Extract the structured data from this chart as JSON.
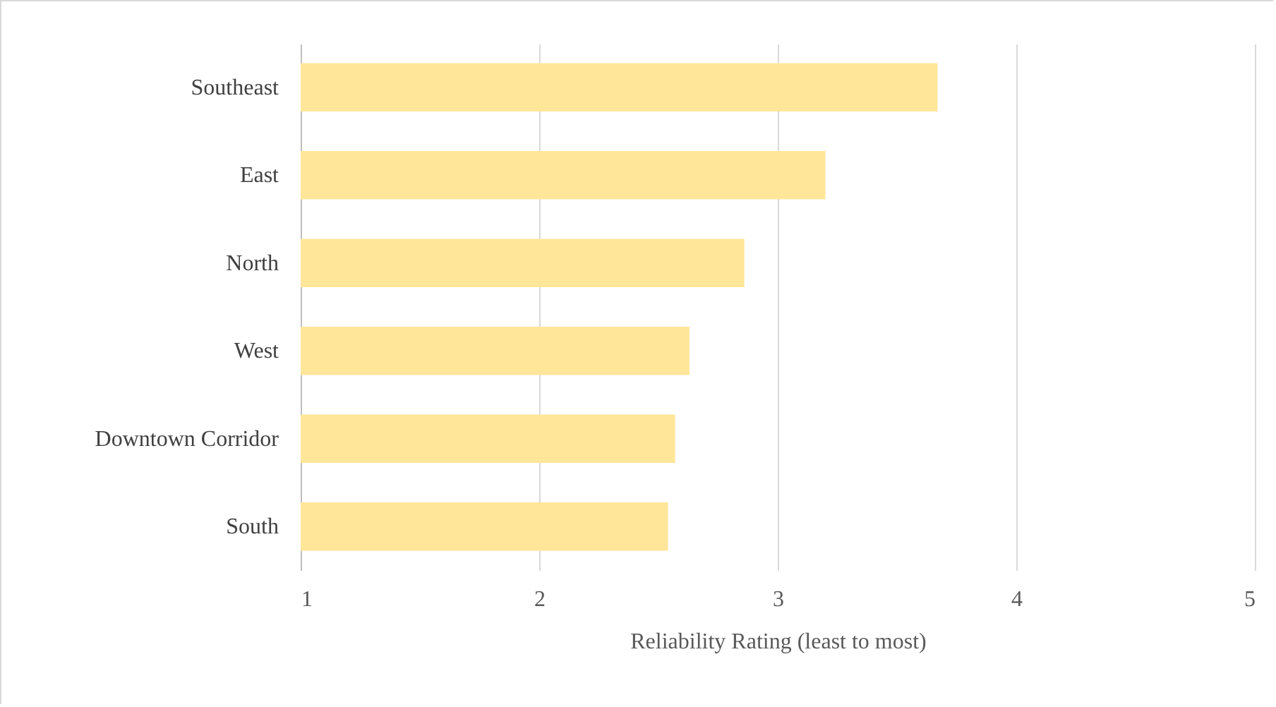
{
  "chart_data": {
    "type": "bar",
    "orientation": "horizontal",
    "xlabel": "Reliability Rating (least to most)",
    "categories": [
      "Southeast",
      "East",
      "North",
      "West",
      "Downtown Corridor",
      "South"
    ],
    "values": [
      3.67,
      3.2,
      2.86,
      2.63,
      2.57,
      2.54
    ],
    "color": "#ffe699",
    "xlim": [
      1,
      5
    ],
    "xticks": [
      1,
      2,
      3,
      4,
      5
    ],
    "grid": "x"
  }
}
